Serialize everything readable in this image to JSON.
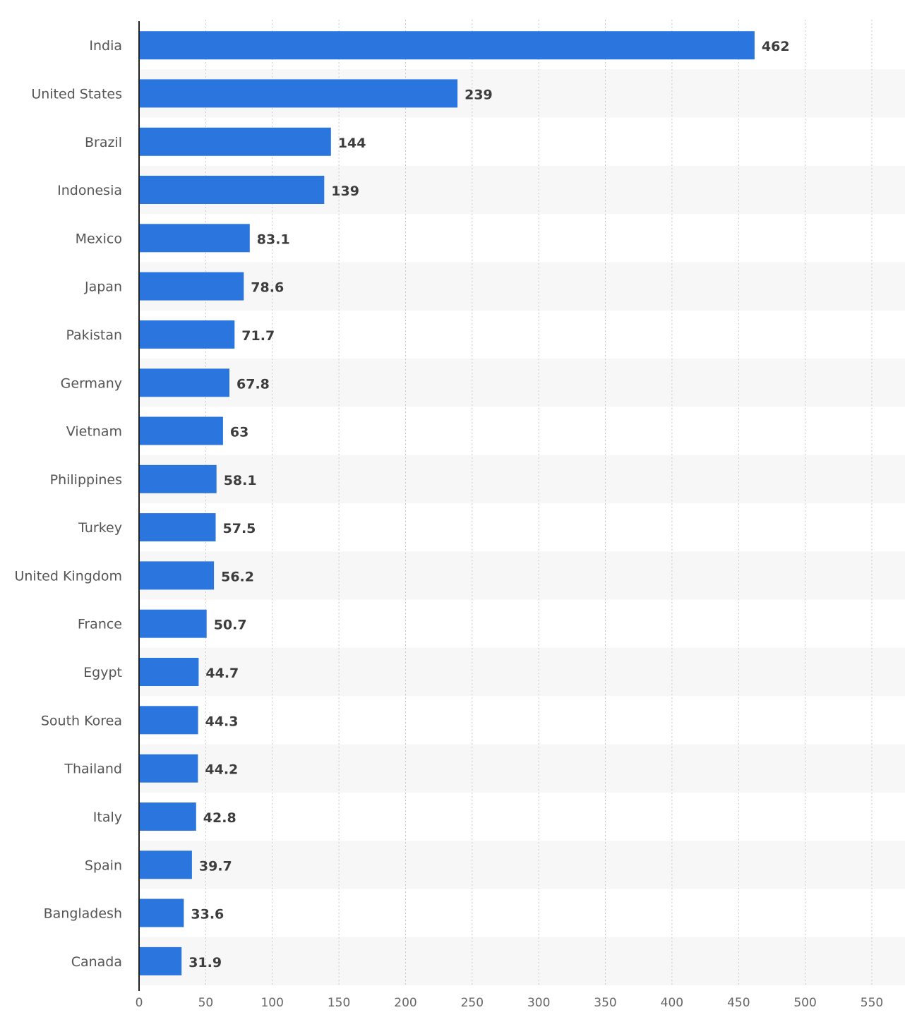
{
  "chart_data": {
    "type": "bar",
    "orientation": "horizontal",
    "title": "",
    "xlabel": "",
    "ylabel": "",
    "categories": [
      "India",
      "United States",
      "Brazil",
      "Indonesia",
      "Mexico",
      "Japan",
      "Pakistan",
      "Germany",
      "Vietnam",
      "Philippines",
      "Turkey",
      "United Kingdom",
      "France",
      "Egypt",
      "South Korea",
      "Thailand",
      "Italy",
      "Spain",
      "Bangladesh",
      "Canada"
    ],
    "values": [
      462,
      239,
      144,
      139,
      83.1,
      78.6,
      71.7,
      67.8,
      63,
      58.1,
      57.5,
      56.2,
      50.7,
      44.7,
      44.3,
      44.2,
      42.8,
      39.7,
      33.6,
      31.9
    ],
    "value_labels": [
      "462",
      "239",
      "144",
      "139",
      "83.1",
      "78.6",
      "71.7",
      "67.8",
      "63",
      "58.1",
      "57.5",
      "56.2",
      "50.7",
      "44.7",
      "44.3",
      "44.2",
      "42.8",
      "39.7",
      "33.6",
      "31.9"
    ],
    "xlim": [
      0,
      550
    ],
    "xticks": [
      0,
      50,
      100,
      150,
      200,
      250,
      300,
      350,
      400,
      450,
      500,
      550
    ],
    "grid": "vertical dotted",
    "legend": "none",
    "bar_color": "#2a75de",
    "row_band_color": "#f7f7f7"
  }
}
